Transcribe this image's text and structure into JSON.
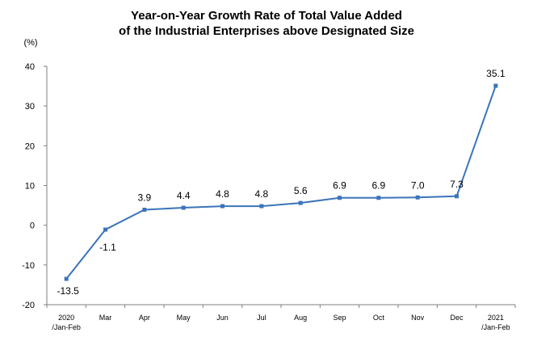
{
  "chart_data": {
    "type": "line",
    "title_lines": [
      "Year-on-Year Growth Rate of Total Value Added",
      "of the Industrial Enterprises above Designated Size"
    ],
    "y_unit": "(%)",
    "categories": [
      [
        "2020",
        "/Jan-Feb"
      ],
      [
        "Mar"
      ],
      [
        "Apr"
      ],
      [
        "May"
      ],
      [
        "Jun"
      ],
      [
        "Jul"
      ],
      [
        "Aug"
      ],
      [
        "Sep"
      ],
      [
        "Oct"
      ],
      [
        "Nov"
      ],
      [
        "Dec"
      ],
      [
        "2021",
        "/Jan-Feb"
      ]
    ],
    "values": [
      -13.5,
      -1.1,
      3.9,
      4.4,
      4.8,
      4.8,
      5.6,
      6.9,
      6.9,
      7.0,
      7.3,
      35.1
    ],
    "labels": [
      "-13.5",
      "-1.1",
      "3.9",
      "4.4",
      "4.8",
      "4.8",
      "5.6",
      "6.9",
      "6.9",
      "7.0",
      "7.3",
      "35.1"
    ],
    "ylim": [
      -20,
      40
    ],
    "yticks": [
      -20,
      -10,
      0,
      10,
      20,
      30,
      40
    ],
    "grid": false,
    "line_color": "#3B74BA",
    "marker_color": "#3B74BA"
  }
}
